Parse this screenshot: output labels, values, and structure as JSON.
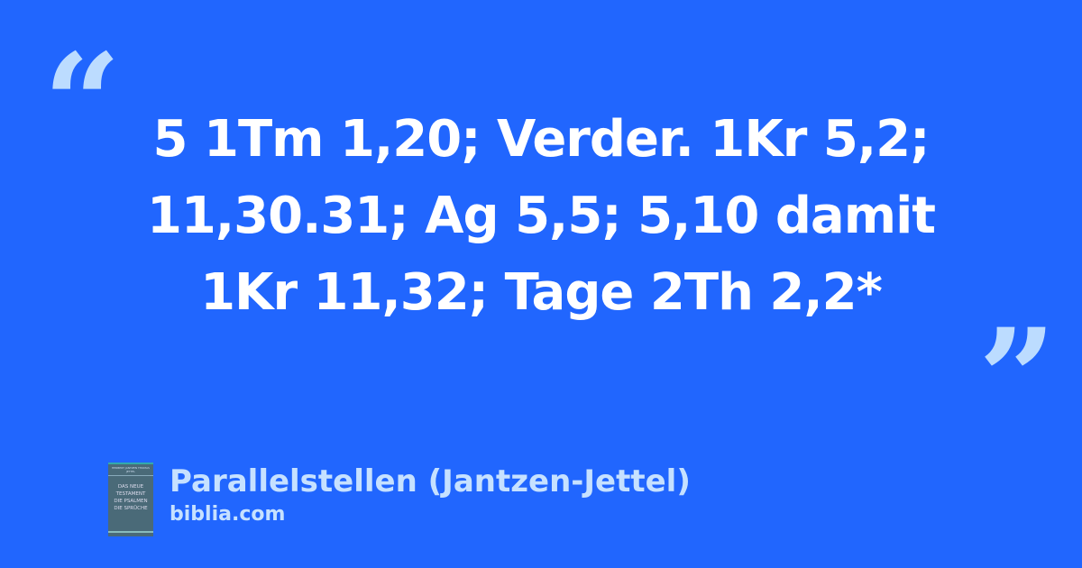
{
  "quote": {
    "open_mark": "“",
    "close_mark": "”",
    "text_lines": [
      "5 1Tm 1,20; Verder. 1Kr 5,2;",
      "11,30.31; Ag 5,5; 5,10 damit",
      "1Kr 11,32; Tage 2Th 2,2*"
    ]
  },
  "source": {
    "cover": {
      "authors": "HERBERT JANTZEN THOMAS JETTEL",
      "title_lines": [
        "DAS NEUE",
        "TESTAMENT",
        "DIE PSALMEN",
        "DIE SPRÜCHE"
      ]
    },
    "title": "Parallelstellen (Jantzen-Jettel)",
    "site": "biblia.com"
  },
  "colors": {
    "background": "#2166fe",
    "accent": "#c6e1ff",
    "text": "#ffffff"
  }
}
